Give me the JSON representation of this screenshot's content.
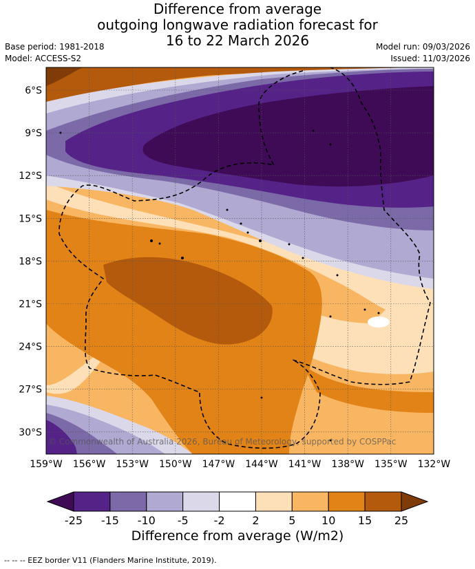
{
  "header": {
    "title_lines": [
      "Difference from average",
      "outgoing longwave radiation forecast for",
      "16 to 22 March 2026"
    ],
    "base_period": "Base period: 1981-2018",
    "model": "Model: ACCESS-S2",
    "model_run": "Model run: 09/03/2026",
    "issued": "Issued: 11/03/2026"
  },
  "map": {
    "lat_labels": [
      "6°S",
      "9°S",
      "12°S",
      "15°S",
      "18°S",
      "21°S",
      "24°S",
      "27°S",
      "30°S"
    ],
    "lon_labels": [
      "159°W",
      "156°W",
      "153°W",
      "150°W",
      "147°W",
      "144°W",
      "141°W",
      "138°W",
      "135°W",
      "132°W"
    ],
    "copyright": "© Commonwealth of Australia 2026, Bureau of Meteorology, supported by COSPPac"
  },
  "legend": {
    "ticks": [
      "-25",
      "-15",
      "-10",
      "-5",
      "-2",
      "2",
      "5",
      "10",
      "15",
      "25"
    ],
    "colors": [
      "#3f0a56",
      "#552388",
      "#7b69a8",
      "#b0a9d1",
      "#dbd8ea",
      "#ffffff",
      "#fde0b8",
      "#f9b662",
      "#e18317",
      "#b45a0c",
      "#7f3b08"
    ],
    "title": "Difference from average (W/m2)"
  },
  "footer": "--  --  -- EEZ border V11 (Flanders Marine Institute, 2019)."
}
